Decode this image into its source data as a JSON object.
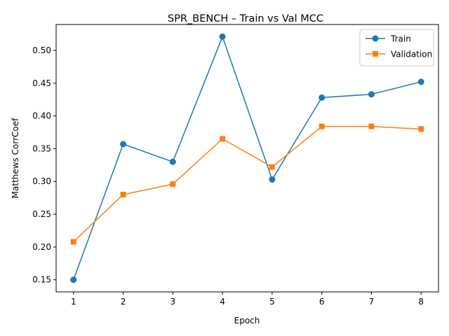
{
  "chart_data": {
    "type": "line",
    "title": "SPR_BENCH – Train vs Val MCC",
    "xlabel": "Epoch",
    "ylabel": "Matthews CorrCoef",
    "x": [
      1,
      2,
      3,
      4,
      5,
      6,
      7,
      8
    ],
    "xlim": [
      0.65,
      8.35
    ],
    "ylim": [
      0.1315,
      0.5395
    ],
    "yticks": [
      0.15,
      0.2,
      0.25,
      0.3,
      0.35,
      0.4,
      0.45,
      0.5
    ],
    "grid": false,
    "legend_position": "top-right",
    "series": [
      {
        "name": "Train",
        "color": "#1f77b4",
        "marker": "circle",
        "values": [
          0.15,
          0.357,
          0.33,
          0.521,
          0.303,
          0.428,
          0.433,
          0.452
        ]
      },
      {
        "name": "Validation",
        "color": "#ff7f0e",
        "marker": "square",
        "values": [
          0.208,
          0.28,
          0.296,
          0.365,
          0.322,
          0.384,
          0.384,
          0.38
        ]
      }
    ]
  }
}
